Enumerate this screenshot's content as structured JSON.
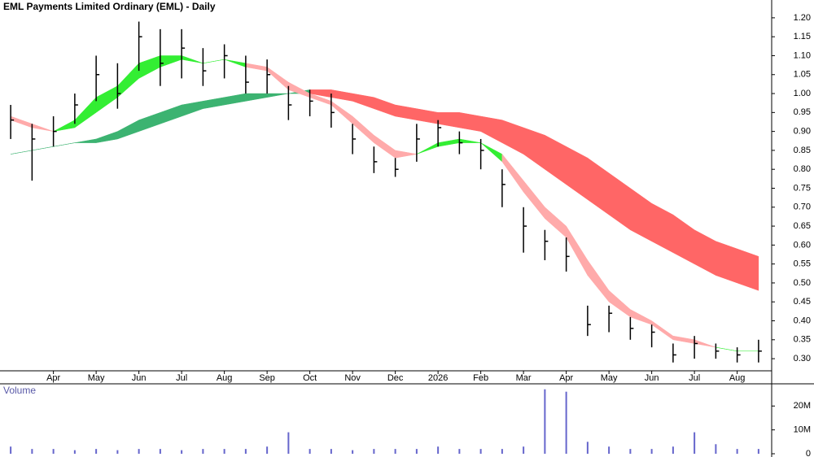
{
  "chart_data": [
    {
      "type": "hlc",
      "title": "EML Payments Limited Ordinary (EML) - Daily",
      "categories": [
        null,
        null,
        "Apr",
        null,
        "May",
        null,
        "Jun",
        null,
        "Jul",
        null,
        "Aug",
        null,
        "Sep",
        null,
        "Oct",
        null,
        "Nov",
        null,
        "Dec",
        null,
        "2026",
        null,
        "Feb",
        null,
        "Mar",
        null,
        "Apr",
        null,
        "May",
        null,
        "Jun",
        null,
        "Jul",
        null,
        "Aug",
        null
      ],
      "high": [
        0.97,
        0.92,
        0.94,
        1.0,
        1.1,
        1.08,
        1.19,
        1.17,
        1.17,
        1.12,
        1.13,
        1.1,
        1.09,
        1.02,
        1.01,
        1.0,
        0.92,
        0.86,
        0.83,
        0.92,
        0.93,
        0.9,
        0.88,
        0.8,
        0.7,
        0.64,
        0.62,
        0.44,
        0.44,
        0.41,
        0.39,
        0.34,
        0.36,
        0.34,
        0.33,
        0.35
      ],
      "low": [
        0.88,
        0.77,
        0.86,
        0.92,
        0.98,
        0.96,
        1.06,
        1.02,
        1.04,
        1.02,
        1.04,
        1.0,
        1.0,
        0.93,
        0.94,
        0.91,
        0.84,
        0.79,
        0.78,
        0.82,
        0.86,
        0.84,
        0.8,
        0.7,
        0.58,
        0.56,
        0.53,
        0.36,
        0.37,
        0.35,
        0.33,
        0.29,
        0.3,
        0.3,
        0.29,
        0.29
      ],
      "close": [
        0.93,
        0.88,
        0.9,
        0.97,
        1.05,
        1.0,
        1.15,
        1.08,
        1.12,
        1.06,
        1.1,
        1.03,
        1.05,
        0.97,
        0.98,
        0.95,
        0.88,
        0.82,
        0.8,
        0.88,
        0.91,
        0.87,
        0.85,
        0.76,
        0.65,
        0.61,
        0.57,
        0.39,
        0.42,
        0.38,
        0.37,
        0.31,
        0.34,
        0.32,
        0.31,
        0.32
      ],
      "color": "#000000",
      "ribbons": [
        {
          "fast": [
            0.84,
            0.85,
            0.86,
            0.87,
            0.88,
            0.9,
            0.93,
            0.95,
            0.97,
            0.98,
            0.99,
            1.0,
            1.0,
            1.0,
            1.0,
            0.99,
            0.98,
            0.96,
            0.94,
            0.93,
            0.92,
            0.91,
            0.9,
            0.87,
            0.84,
            0.8,
            0.76,
            0.72,
            0.68,
            0.64,
            0.61,
            0.58,
            0.55,
            0.52,
            0.5,
            0.48
          ],
          "slow": [
            0.84,
            0.85,
            0.86,
            0.87,
            0.87,
            0.88,
            0.9,
            0.92,
            0.94,
            0.96,
            0.97,
            0.98,
            0.99,
            1.0,
            1.01,
            1.01,
            1.0,
            0.99,
            0.97,
            0.96,
            0.95,
            0.95,
            0.94,
            0.93,
            0.91,
            0.89,
            0.86,
            0.83,
            0.79,
            0.75,
            0.71,
            0.68,
            0.64,
            0.61,
            0.59,
            0.57
          ],
          "up_color": "#3cb371",
          "down_color": "#ff6666"
        },
        {
          "fast": [
            0.93,
            0.91,
            0.9,
            0.93,
            0.99,
            1.02,
            1.08,
            1.1,
            1.1,
            1.08,
            1.09,
            1.07,
            1.06,
            1.01,
            0.99,
            0.97,
            0.92,
            0.87,
            0.83,
            0.84,
            0.87,
            0.88,
            0.87,
            0.82,
            0.74,
            0.67,
            0.62,
            0.52,
            0.45,
            0.41,
            0.39,
            0.35,
            0.34,
            0.33,
            0.32,
            0.32
          ],
          "slow": [
            0.94,
            0.92,
            0.9,
            0.91,
            0.95,
            0.99,
            1.04,
            1.07,
            1.09,
            1.08,
            1.09,
            1.08,
            1.07,
            1.03,
            1.0,
            0.98,
            0.94,
            0.89,
            0.85,
            0.84,
            0.86,
            0.87,
            0.87,
            0.84,
            0.77,
            0.7,
            0.65,
            0.56,
            0.48,
            0.43,
            0.4,
            0.36,
            0.35,
            0.33,
            0.32,
            0.32
          ],
          "up_color": "#33ee33",
          "down_color": "#ffaaaa"
        }
      ],
      "ylim": [
        0.268,
        1.247
      ],
      "yticks": [
        {
          "value": 1.2,
          "label": "1.20"
        },
        {
          "value": 1.15,
          "label": "1.15"
        },
        {
          "value": 1.1,
          "label": "1.10"
        },
        {
          "value": 1.05,
          "label": "1.05"
        },
        {
          "value": 1.0,
          "label": "1.00"
        },
        {
          "value": 0.95,
          "label": "0.95"
        },
        {
          "value": 0.9,
          "label": "0.90"
        },
        {
          "value": 0.85,
          "label": "0.85"
        },
        {
          "value": 0.8,
          "label": "0.80"
        },
        {
          "value": 0.75,
          "label": "0.75"
        },
        {
          "value": 0.7,
          "label": "0.70"
        },
        {
          "value": 0.65,
          "label": "0.65"
        },
        {
          "value": 0.6,
          "label": "0.60"
        },
        {
          "value": 0.55,
          "label": "0.55"
        },
        {
          "value": 0.5,
          "label": "0.50"
        },
        {
          "value": 0.45,
          "label": "0.45"
        },
        {
          "value": 0.4,
          "label": "0.40"
        },
        {
          "value": 0.35,
          "label": "0.35"
        },
        {
          "value": 0.3,
          "label": "0.30"
        }
      ]
    },
    {
      "type": "bar",
      "title": "Volume",
      "values": [
        3,
        2,
        2,
        1.5,
        2,
        1.5,
        2,
        2,
        1.5,
        2,
        2,
        2,
        3,
        9,
        2,
        2,
        1.5,
        2,
        2,
        2,
        3,
        2,
        2,
        2,
        3,
        27,
        26,
        5,
        3,
        2,
        2,
        3,
        9,
        4,
        2,
        2
      ],
      "color": "#6666cc",
      "ylim": [
        0,
        29.3
      ],
      "yticks": [
        {
          "value": 20,
          "label": "20M"
        },
        {
          "value": 10,
          "label": "10M"
        },
        0
      ]
    }
  ]
}
